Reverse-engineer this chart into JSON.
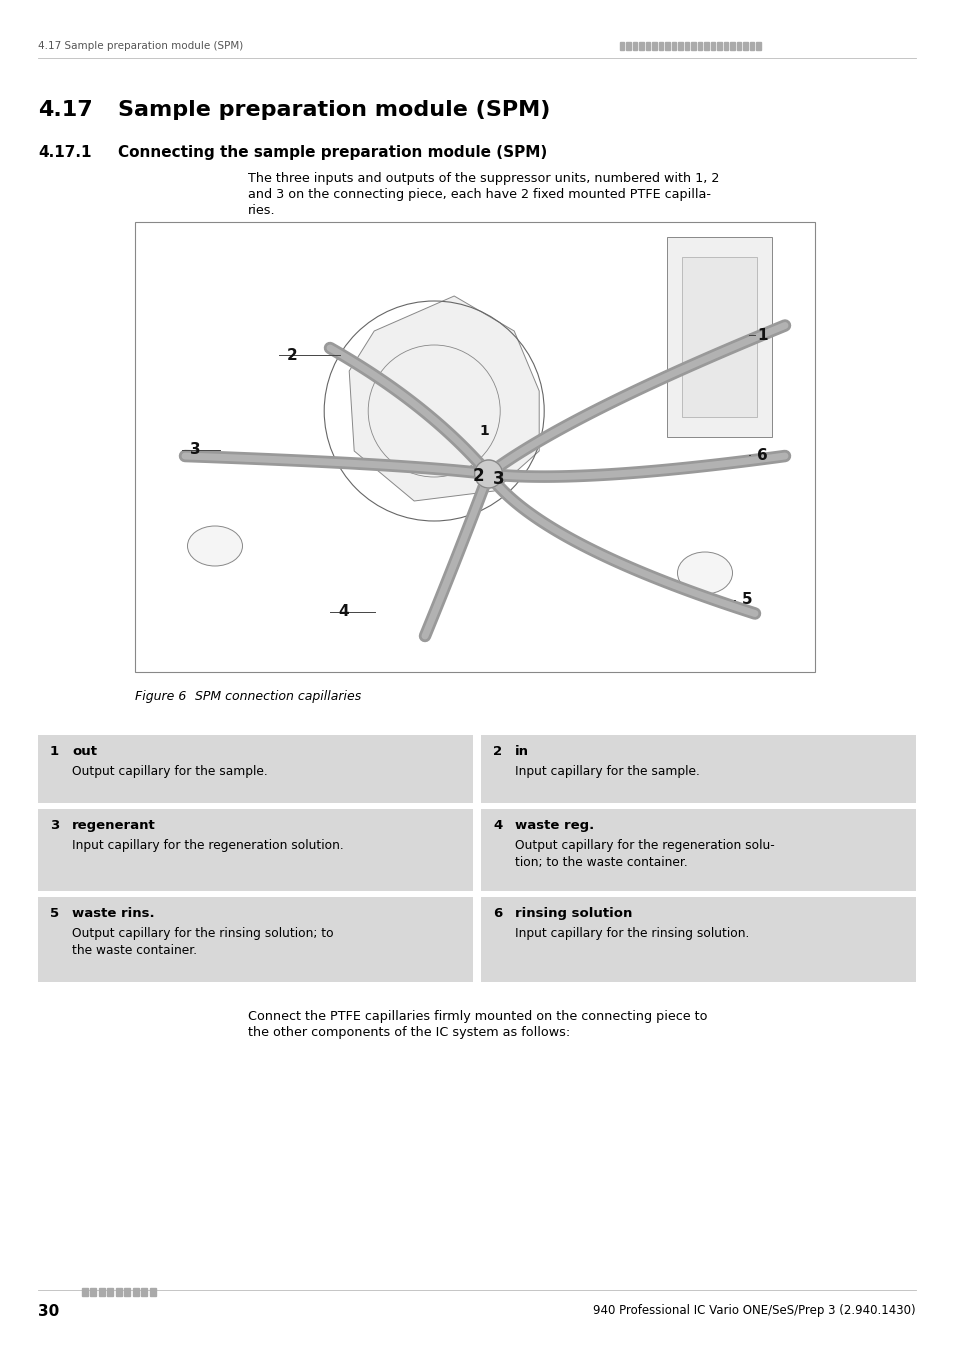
{
  "page_width": 9.54,
  "page_height": 13.5,
  "bg_color": "#ffffff",
  "header_text_left": "4.17 Sample preparation module (SPM)",
  "section_num": "4.17",
  "section_title": "Sample preparation module (SPM)",
  "subsection_num": "4.17.1",
  "subsection_title": "Connecting the sample preparation module (SPM)",
  "body_line1": "The three inputs and outputs of the suppressor units, numbered with 1, 2",
  "body_line2": "and 3 on the connecting piece, each have 2 fixed mounted PTFE capilla-",
  "body_line3": "ries.",
  "figure_caption_bold": "Figure 6",
  "figure_caption_rest": "   SPM connection capillaries",
  "table_bg": "#d8d8d8",
  "table_entries": [
    {
      "num": "1",
      "title": "out",
      "desc": "Output capillary for the sample.",
      "col": 0,
      "row": 0
    },
    {
      "num": "2",
      "title": "in",
      "desc": "Input capillary for the sample.",
      "col": 1,
      "row": 0
    },
    {
      "num": "3",
      "title": "regenerant",
      "desc": "Input capillary for the regeneration solution.",
      "col": 0,
      "row": 1
    },
    {
      "num": "4",
      "title": "waste reg.",
      "desc": "Output capillary for the regeneration solu-\ntion; to the waste container.",
      "col": 1,
      "row": 1
    },
    {
      "num": "5",
      "title": "waste rins.",
      "desc": "Output capillary for the rinsing solution; to\nthe waste container.",
      "col": 0,
      "row": 2
    },
    {
      "num": "6",
      "title": "rinsing solution",
      "desc": "Input capillary for the rinsing solution.",
      "col": 1,
      "row": 2
    }
  ],
  "footer_page": "30",
  "footer_right": "940 Professional IC Vario ONE/SeS/Prep 3 (2.940.1430)",
  "closing_line1": "Connect the PTFE capillaries firmly mounted on the connecting piece to",
  "closing_line2": "the other components of the IC system as follows:"
}
